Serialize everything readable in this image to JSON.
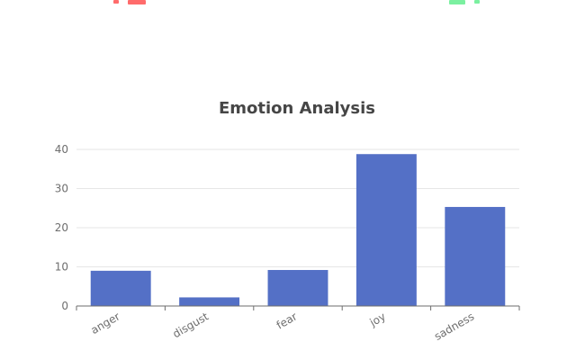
{
  "decor": {
    "left_glyph_color": "#ff6b6b",
    "right_glyph_color": "#7bf0a0"
  },
  "chart_data": {
    "type": "bar",
    "title": "Emotion Analysis",
    "xlabel": "",
    "ylabel": "",
    "categories": [
      "anger",
      "disgust",
      "fear",
      "joy",
      "sadness"
    ],
    "values": [
      9,
      2.2,
      9.2,
      38.8,
      25.3
    ],
    "ylim": [
      0,
      40
    ],
    "yticks": [
      0,
      10,
      20,
      30,
      40
    ],
    "grid": true,
    "colors": {
      "bar": "#5470c6",
      "grid": "#e6e6e6",
      "axis": "#6e6e6e"
    }
  }
}
